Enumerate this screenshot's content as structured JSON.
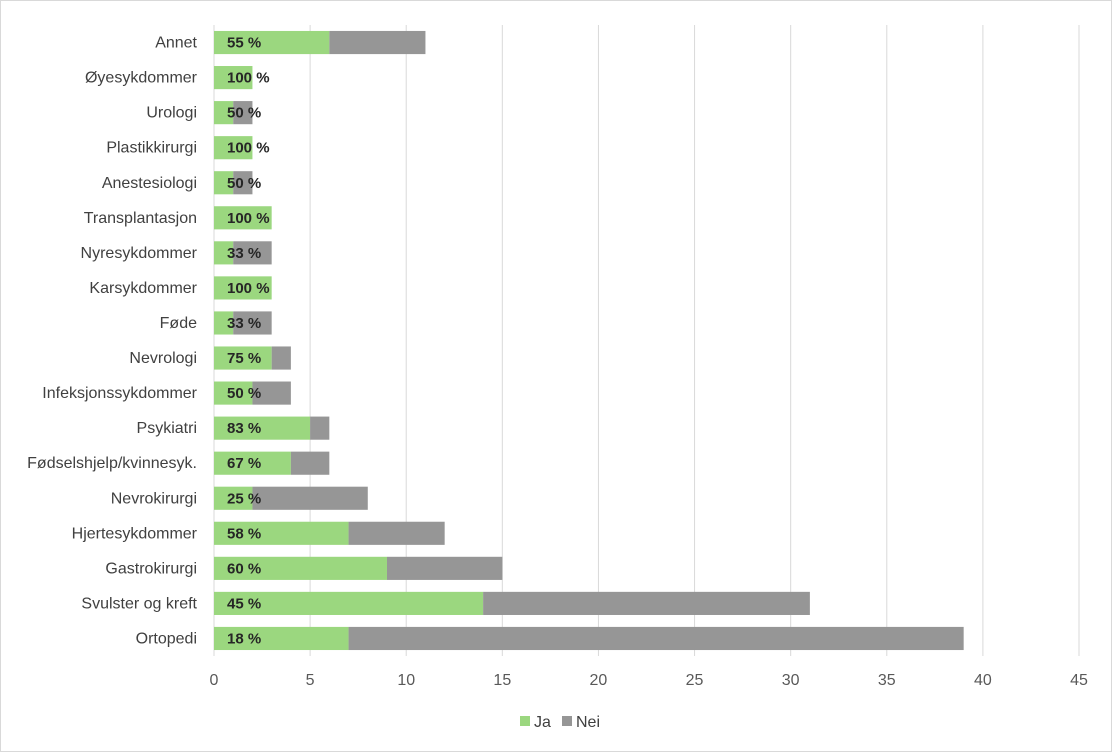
{
  "chart_data": {
    "type": "bar",
    "orientation": "horizontal",
    "stacked": true,
    "categories": [
      "Annet",
      "Øyesykdommer",
      "Urologi",
      "Plastikkirurgi",
      "Anestesiologi",
      "Transplantasjon",
      "Nyresykdommer",
      "Karsykdommer",
      "Føde",
      "Nevrologi",
      "Infeksjonssykdommer",
      "Psykiatri",
      "Fødselshjelp/kvinnesyk.",
      "Nevrokirurgi",
      "Hjertesykdommer",
      "Gastrokirurgi",
      "Svulster og kreft",
      "Ortopedi"
    ],
    "series": [
      {
        "name": "Ja",
        "color": "#9bd77f",
        "values": [
          6,
          2,
          1,
          2,
          1,
          3,
          1,
          3,
          1,
          3,
          2,
          5,
          4,
          2,
          7,
          9,
          14,
          7
        ]
      },
      {
        "name": "Nei",
        "color": "#969696",
        "values": [
          5,
          0,
          1,
          0,
          1,
          0,
          2,
          0,
          2,
          1,
          2,
          1,
          2,
          6,
          5,
          6,
          17,
          32
        ]
      }
    ],
    "data_labels": [
      "55 %",
      "100 %",
      "50 %",
      "100 %",
      "50 %",
      "100 %",
      "33 %",
      "100 %",
      "33 %",
      "75 %",
      "50 %",
      "83 %",
      "67 %",
      "25 %",
      "58 %",
      "60 %",
      "45 %",
      "18 %"
    ],
    "x_ticks": [
      "0",
      "5",
      "10",
      "15",
      "20",
      "25",
      "30",
      "35",
      "40",
      "45"
    ],
    "xlim": [
      0,
      45
    ],
    "grid": "vertical",
    "legend_position": "bottom",
    "title": "",
    "xlabel": "",
    "ylabel": ""
  }
}
